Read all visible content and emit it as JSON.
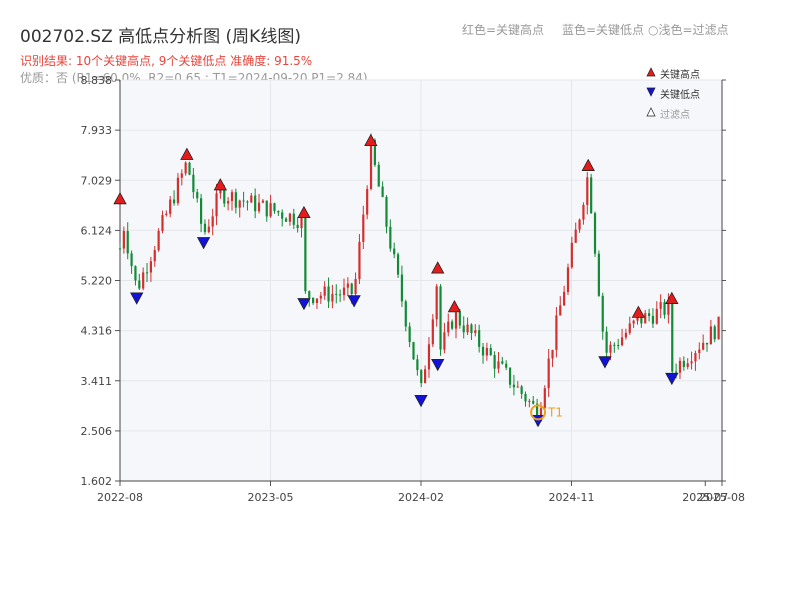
{
  "title": "002702.SZ 高低点分析图 (周K线图)",
  "header_legend": [
    {
      "text": "红色=关键高点"
    },
    {
      "text": "蓝色=关键低点"
    },
    {
      "text": "○浅色=过滤点"
    }
  ],
  "result_line": "识别结果: 10个关键高点, 9个关键低点  准确度: 91.5%",
  "quality_line": "优质：否 (R1=60.0%, R2=0.65 ; T1=2024-09-20 P1=2.84)",
  "colors": {
    "up": "#d32f2f",
    "down": "#138a36",
    "high": "#e51c1c",
    "low": "#1212d8",
    "accent": "#f0a020"
  },
  "legend": [
    {
      "label": "关键高点",
      "icon": "red-up-triangle-icon"
    },
    {
      "label": "关键低点",
      "icon": "blue-down-triangle-icon"
    },
    {
      "label": "过滤点",
      "icon": "white-up-triangle-icon"
    }
  ],
  "chart_data": {
    "type": "candlestick",
    "ylim": [
      1.602,
      8.838
    ],
    "y_ticks": [
      "1.602",
      "2.506",
      "3.411",
      "4.316",
      "5.220",
      "6.124",
      "7.029",
      "7.933",
      "8.838"
    ],
    "x_ticks": [
      "2022-08",
      "2023-05",
      "2024-02",
      "2024-11",
      "2025-07",
      "2025-08"
    ],
    "x_range": [
      "2022-08",
      "2025-08"
    ],
    "key_highs": [
      {
        "date": "2022-08",
        "value": 6.55
      },
      {
        "date": "2022-12",
        "value": 7.35
      },
      {
        "date": "2023-02",
        "value": 6.8
      },
      {
        "date": "2023-07",
        "value": 6.3
      },
      {
        "date": "2023-11",
        "value": 7.6
      },
      {
        "date": "2024-03",
        "value": 5.3
      },
      {
        "date": "2024-04",
        "value": 4.6
      },
      {
        "date": "2024-12",
        "value": 7.15
      },
      {
        "date": "2025-03",
        "value": 4.5
      },
      {
        "date": "2025-05",
        "value": 4.75
      }
    ],
    "key_lows": [
      {
        "date": "2022-09",
        "value": 5.05
      },
      {
        "date": "2023-01",
        "value": 6.05
      },
      {
        "date": "2023-07",
        "value": 4.95
      },
      {
        "date": "2023-10",
        "value": 5.0
      },
      {
        "date": "2024-02",
        "value": 3.2
      },
      {
        "date": "2024-03",
        "value": 3.85
      },
      {
        "date": "2024-09",
        "value": 2.84
      },
      {
        "date": "2025-01",
        "value": 3.9
      },
      {
        "date": "2025-05",
        "value": 3.6
      }
    ],
    "annotation": {
      "label": "T1",
      "date": "2024-09",
      "value": 2.84
    },
    "grid": true,
    "legend_position": "top-right"
  }
}
